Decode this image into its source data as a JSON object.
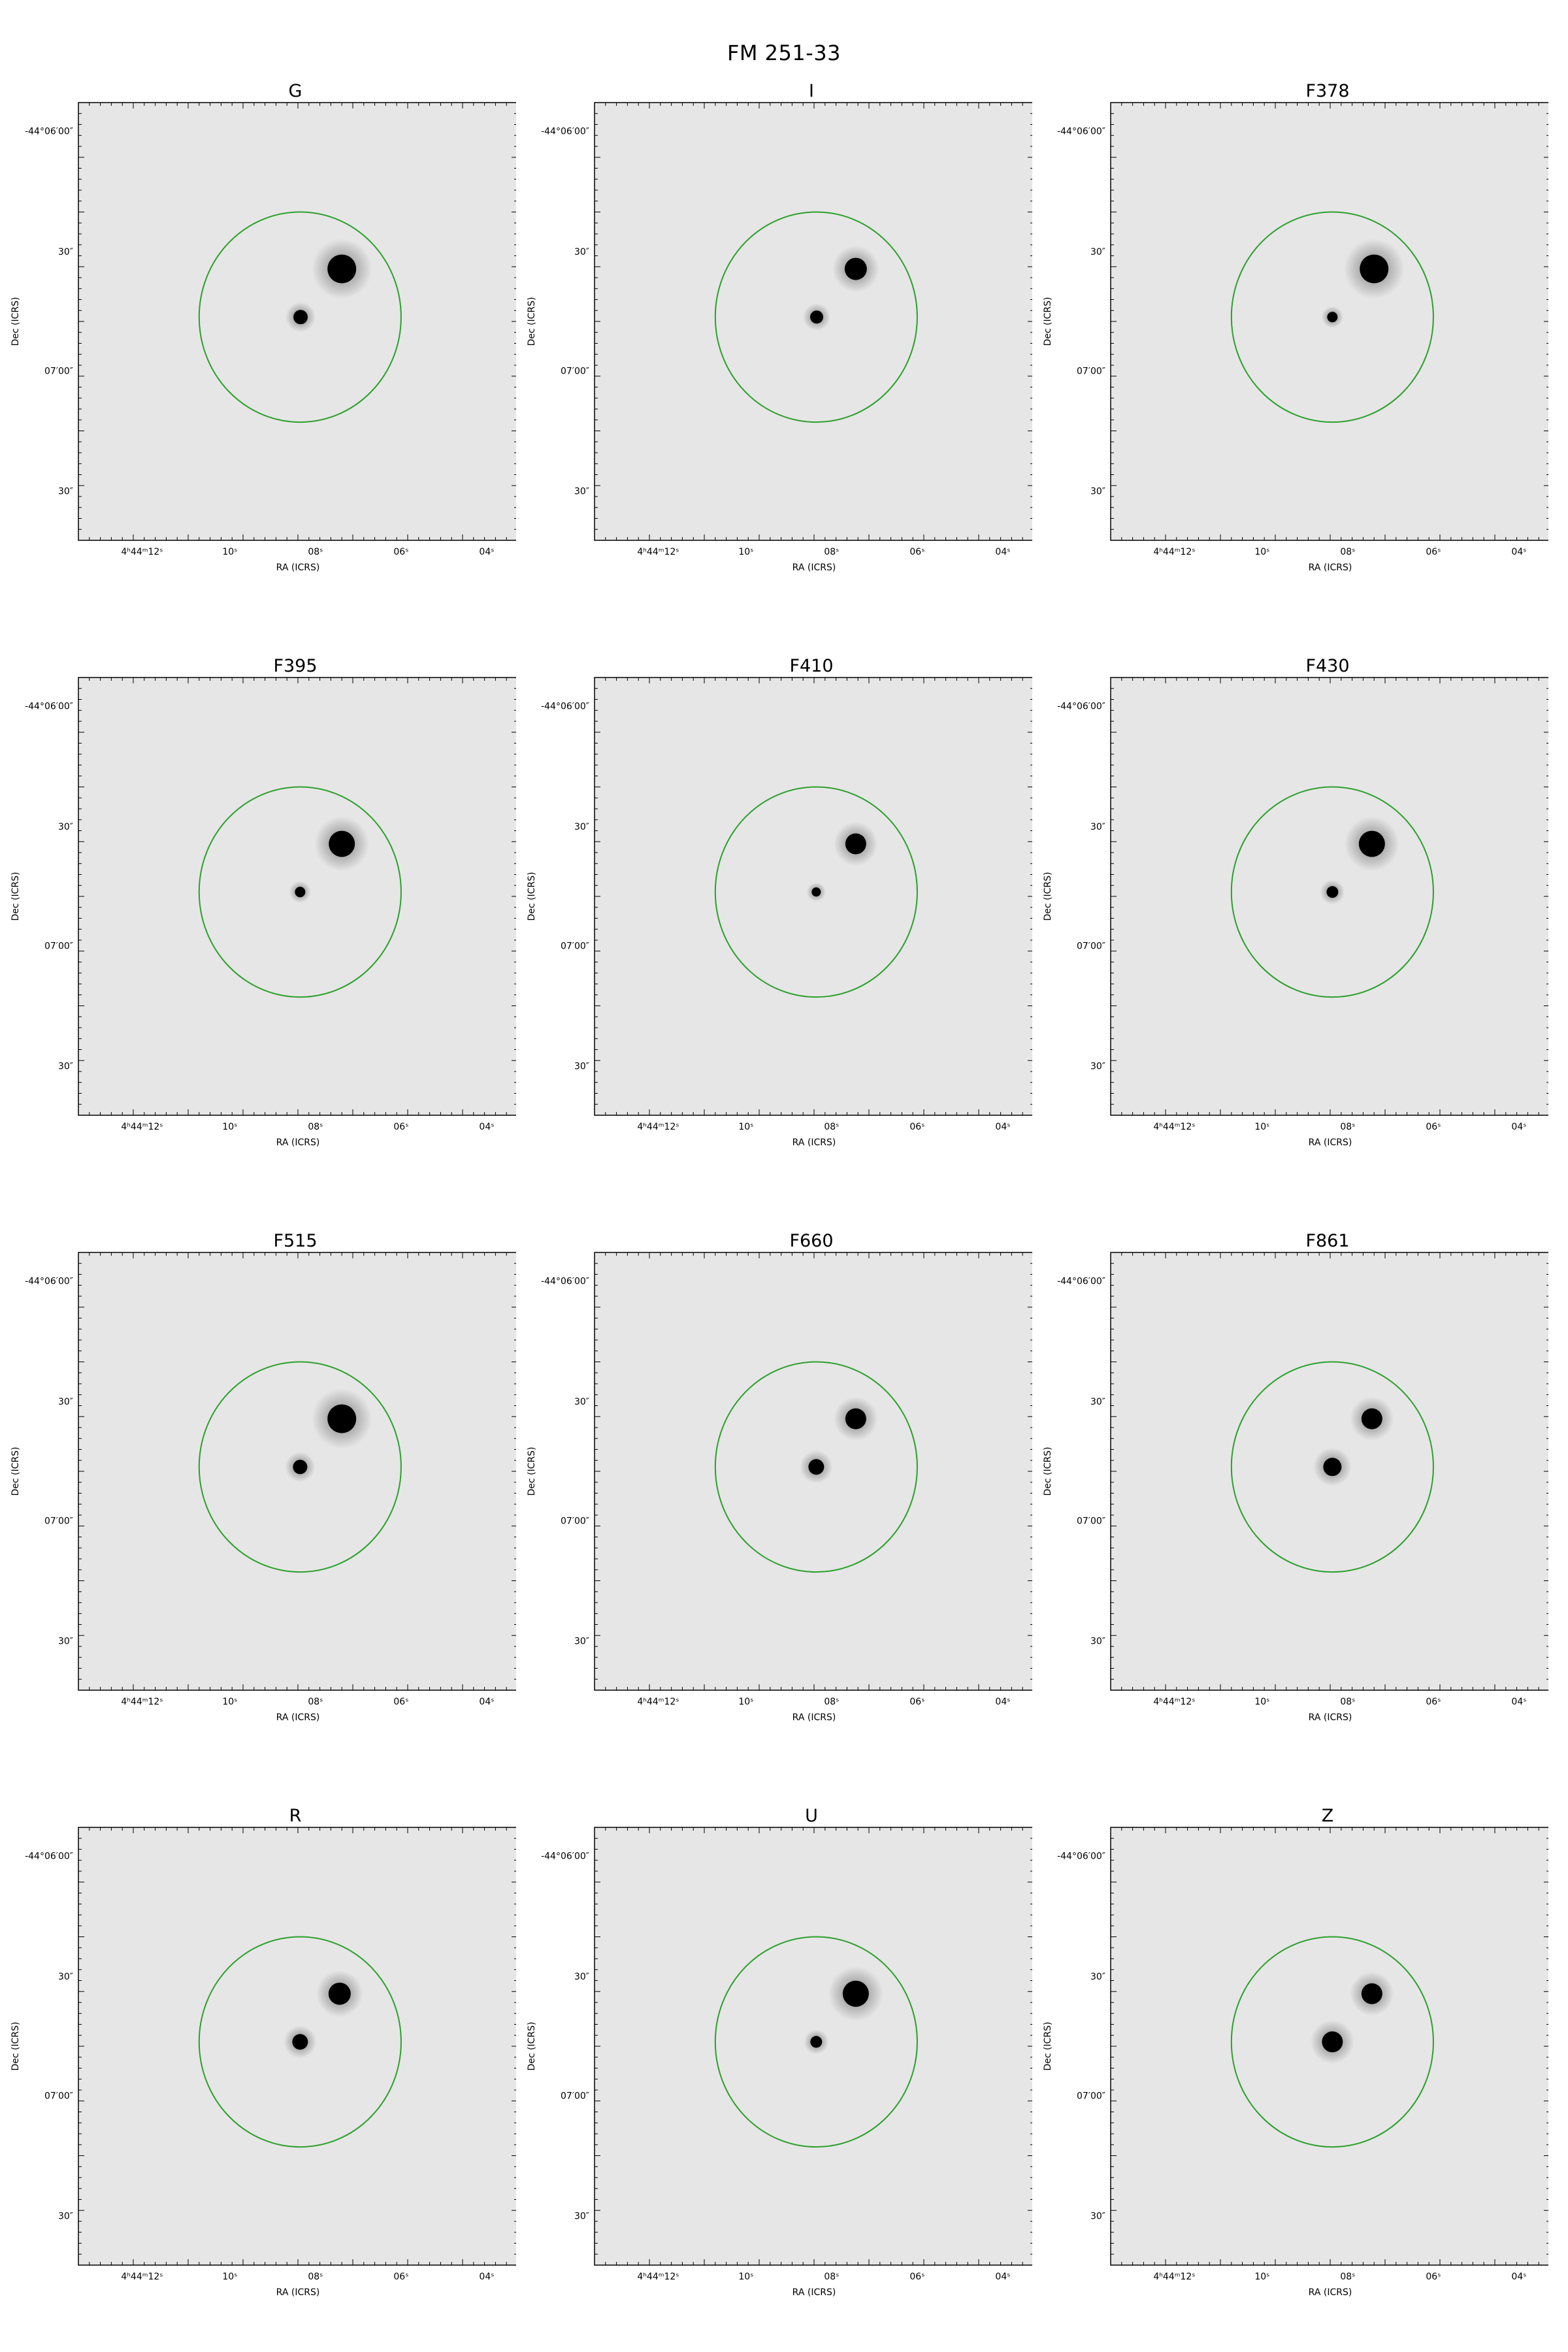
{
  "title": "FM 251-33",
  "axes": {
    "xlabel": "RA (ICRS)",
    "ylabel": "Dec (ICRS)",
    "xticks": [
      "4ʰ44ᵐ12ˢ",
      "10ˢ",
      "08ˢ",
      "06ˢ",
      "04ˢ"
    ],
    "yticks": [
      "-44°06′00″",
      "30″",
      "07′00″",
      "30″"
    ]
  },
  "colors": {
    "background": "#e6e6e6",
    "aperture": "#2ca02c",
    "source": "#000000",
    "frame": "#000000"
  },
  "panels": [
    {
      "filter": "G"
    },
    {
      "filter": "I"
    },
    {
      "filter": "F378"
    },
    {
      "filter": "F395"
    },
    {
      "filter": "F410"
    },
    {
      "filter": "F430"
    },
    {
      "filter": "F515"
    },
    {
      "filter": "F660"
    },
    {
      "filter": "F861"
    },
    {
      "filter": "R"
    },
    {
      "filter": "U"
    },
    {
      "filter": "Z"
    }
  ]
}
